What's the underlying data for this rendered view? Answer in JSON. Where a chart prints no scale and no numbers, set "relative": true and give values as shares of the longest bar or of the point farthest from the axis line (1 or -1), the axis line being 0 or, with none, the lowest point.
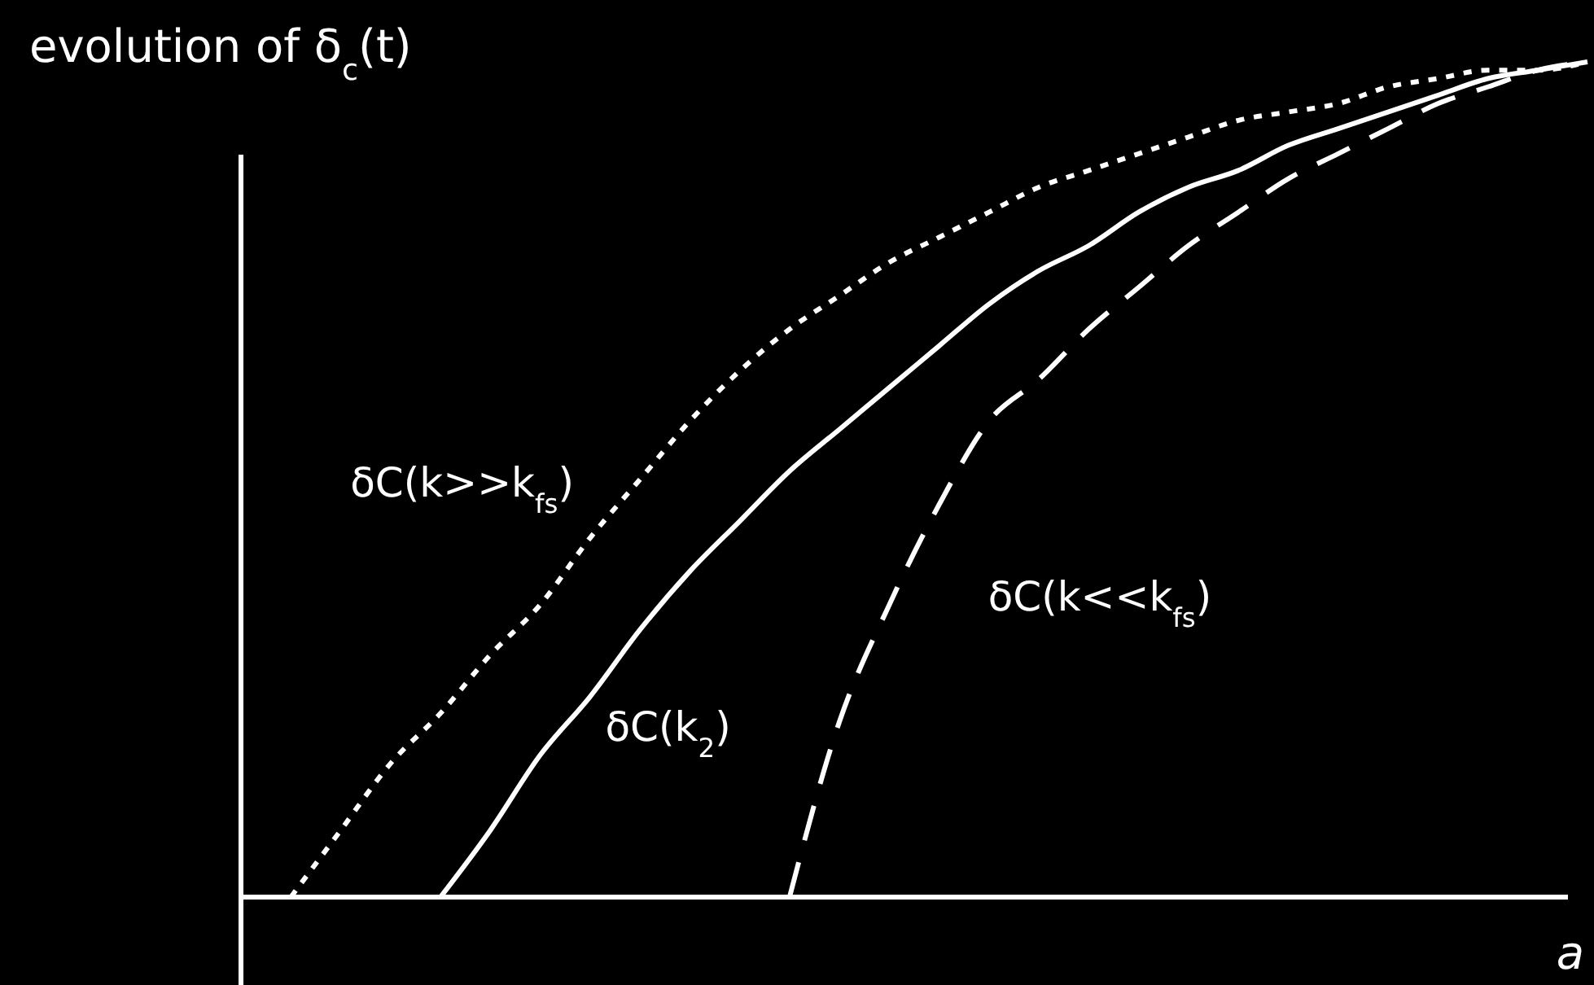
{
  "chart_data": {
    "type": "line",
    "relative": true,
    "title": "evolution of δ$_{c}$(t)",
    "xlabel": "a",
    "categories": [
      null,
      null,
      null,
      null,
      null,
      null,
      null,
      null,
      null,
      null,
      null,
      null,
      null,
      null,
      null,
      null,
      null,
      null,
      null,
      null,
      null,
      null,
      null,
      null,
      null,
      null,
      null,
      null
    ],
    "series": [
      {
        "name": "δC(k>>k$_{fs}$)",
        "color": "#ffffff",
        "line_style": "dotted",
        "values": [
          null,
          0,
          0.08,
          0.16,
          0.22,
          0.29,
          0.35,
          0.43,
          0.5,
          0.57,
          0.63,
          0.68,
          0.72,
          0.76,
          0.79,
          0.82,
          0.85,
          0.87,
          0.89,
          0.91,
          0.93,
          0.94,
          0.95,
          0.97,
          0.98,
          0.99,
          0.99,
          1
        ]
      },
      {
        "name": "δC(k$_{2}$)",
        "color": "#ffffff",
        "line_style": "solid",
        "values": [
          null,
          null,
          null,
          null,
          0,
          0.08,
          0.17,
          0.24,
          0.32,
          0.39,
          0.45,
          0.51,
          0.56,
          0.61,
          0.66,
          0.71,
          0.75,
          0.78,
          0.82,
          0.85,
          0.87,
          0.9,
          0.92,
          0.94,
          0.96,
          0.98,
          0.99,
          1
        ]
      },
      {
        "name": "δC(k<<k$_{fs}$)",
        "color": "#ffffff",
        "line_style": "dashed",
        "values": [
          null,
          null,
          null,
          null,
          null,
          null,
          null,
          null,
          null,
          null,
          null,
          0,
          0.21,
          0.35,
          0.47,
          0.57,
          0.62,
          0.68,
          0.73,
          0.78,
          0.82,
          0.86,
          0.89,
          0.92,
          0.95,
          0.97,
          0.99,
          1
        ]
      }
    ]
  }
}
